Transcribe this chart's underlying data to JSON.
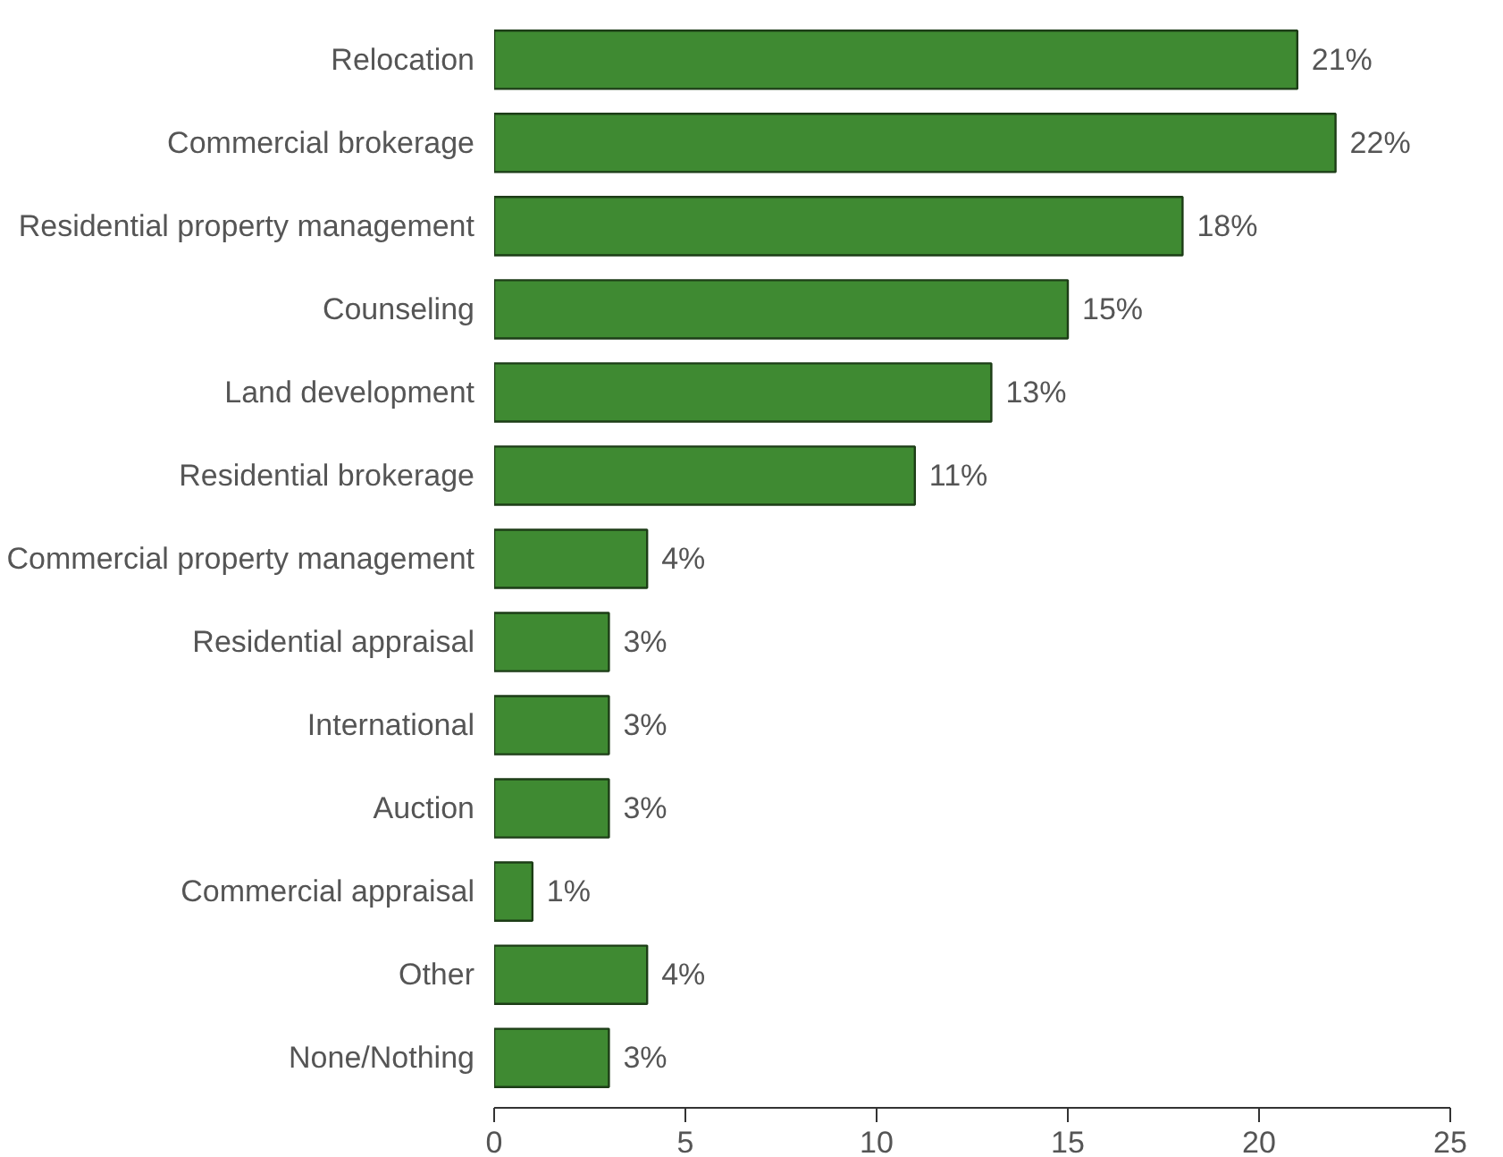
{
  "chart_data": {
    "type": "bar",
    "orientation": "horizontal",
    "categories": [
      "Relocation",
      "Commercial brokerage",
      "Residential property management",
      "Counseling",
      "Land development",
      "Residential brokerage",
      "Commercial property management",
      "Residential appraisal",
      "International",
      "Auction",
      "Commercial appraisal",
      "Other",
      "None/Nothing"
    ],
    "values": [
      21,
      22,
      18,
      15,
      13,
      11,
      4,
      3,
      3,
      3,
      1,
      4,
      3
    ],
    "value_labels": [
      "21%",
      "22%",
      "18%",
      "15%",
      "13%",
      "11%",
      "4%",
      "3%",
      "3%",
      "3%",
      "1%",
      "4%",
      "3%"
    ],
    "color": "#3f8a32",
    "xlim": [
      0,
      25
    ],
    "xticks": [
      0,
      5,
      10,
      15,
      20,
      25
    ],
    "grid": false
  }
}
